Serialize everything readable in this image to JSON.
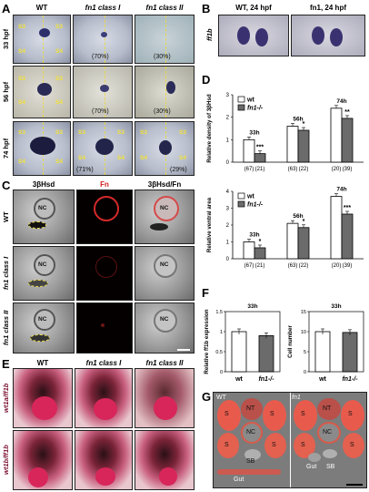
{
  "panels": {
    "A": {
      "label": "A",
      "columns": [
        {
          "text": "WT",
          "italic": false
        },
        {
          "text": "fn1 class I",
          "italic": true
        },
        {
          "text": "fn1 class II",
          "italic": true
        }
      ],
      "rows": [
        "33 hpf",
        "56 hpf",
        "74 hpf"
      ],
      "somite_labels": {
        "s3": "S3",
        "s4": "S4"
      },
      "percentages": {
        "r1c2": "(70%)",
        "r1c3": "(30%)",
        "r2c2": "(70%)",
        "r2c3": "(30%)",
        "r3c2": "(71%)",
        "r3c3": "(29%)"
      }
    },
    "B": {
      "label": "B",
      "columns": [
        "WT, 24 hpf",
        "fn1, 24 hpf"
      ],
      "row": "ff1b"
    },
    "C": {
      "label": "C",
      "columns": [
        "3βHsd",
        "Fn",
        "3βHsd/Fn"
      ],
      "rows": [
        "WT",
        "fn1 class I",
        "fn1 class II"
      ],
      "nc": "NC"
    },
    "D": {
      "label": "D",
      "charts": [
        "density",
        "area"
      ]
    },
    "E": {
      "label": "E",
      "columns": [
        "WT",
        "fn1 class I",
        "fn1 class II"
      ],
      "rows": [
        "wt1a/ff1b",
        "wt1b/ff1b"
      ]
    },
    "F": {
      "label": "F",
      "charts": [
        "expression",
        "cellnumber"
      ]
    },
    "G": {
      "label": "G",
      "left_genotype": "WT",
      "right_genotype": "fn1",
      "labels": {
        "s": "S",
        "nt": "NT",
        "nc": "NC",
        "sb": "SB",
        "gut": "Gut"
      }
    }
  },
  "chart_data": [
    {
      "id": "density",
      "type": "bar",
      "ylabel": "Relative density of 3βHsd",
      "ylim": [
        0,
        3
      ],
      "yticks": [
        0,
        1,
        2,
        3
      ],
      "legend": [
        "wt",
        "fn1-/-"
      ],
      "legend_placement": "top-left",
      "groups": [
        {
          "label": "33h",
          "n": [
            "(67)",
            "(21)"
          ],
          "values": [
            1.0,
            0.38
          ],
          "sig": "***"
        },
        {
          "label": "56h",
          "n": [
            "(63)",
            "(22)"
          ],
          "values": [
            1.6,
            1.42
          ],
          "sig": "*"
        },
        {
          "label": "74h",
          "n": [
            "(20)",
            "(39)"
          ],
          "values": [
            2.4,
            1.95
          ],
          "sig": "**"
        }
      ],
      "series": [
        {
          "name": "wt",
          "color": "#ffffff"
        },
        {
          "name": "fn1-/-",
          "color": "#6b6b6b"
        }
      ]
    },
    {
      "id": "area",
      "type": "bar",
      "ylabel": "Relative ventral area",
      "ylim": [
        0,
        4
      ],
      "yticks": [
        0,
        1,
        2,
        3,
        4
      ],
      "legend": [
        "wt",
        "fn1-/-"
      ],
      "legend_placement": "top-left",
      "groups": [
        {
          "label": "33h",
          "n": [
            "(67)",
            "(21)"
          ],
          "values": [
            1.0,
            0.65
          ],
          "sig": "*"
        },
        {
          "label": "56h",
          "n": [
            "(63)",
            "(22)"
          ],
          "values": [
            2.1,
            1.85
          ],
          "sig": "*"
        },
        {
          "label": "74h",
          "n": [
            "(20)",
            "(39)"
          ],
          "values": [
            3.7,
            2.65
          ],
          "sig": "***"
        }
      ],
      "series": [
        {
          "name": "wt",
          "color": "#ffffff"
        },
        {
          "name": "fn1-/-",
          "color": "#6b6b6b"
        }
      ]
    },
    {
      "id": "expression",
      "type": "bar",
      "title": "33h",
      "ylabel": "Relative ff1b expression",
      "ylim": [
        0,
        1.5
      ],
      "yticks": [
        0,
        0.5,
        1,
        1.5
      ],
      "categories": [
        "wt",
        "fn1-/-"
      ],
      "values": [
        1.0,
        0.9
      ]
    },
    {
      "id": "cellnumber",
      "type": "bar",
      "title": "33h",
      "ylabel": "Cell number",
      "ylim": [
        0,
        15
      ],
      "yticks": [
        0,
        5,
        10,
        15
      ],
      "categories": [
        "wt",
        "fn1-/-"
      ],
      "values": [
        10,
        9.8
      ]
    }
  ]
}
